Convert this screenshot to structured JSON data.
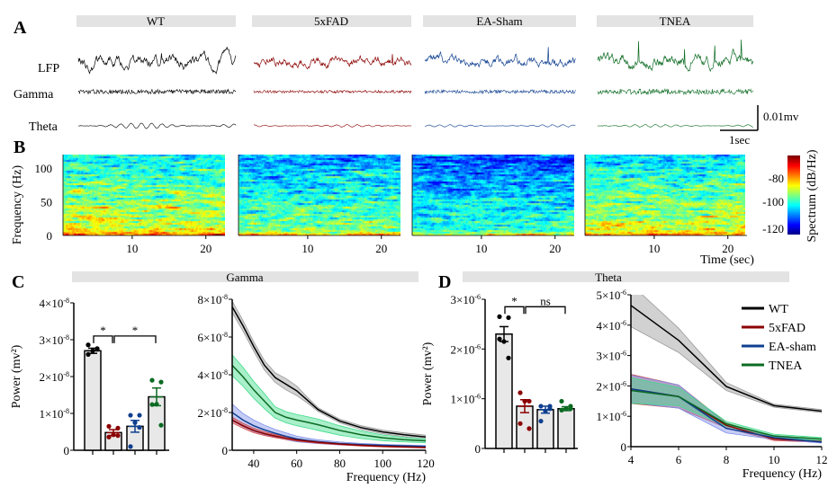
{
  "panel_labels": {
    "a": "A",
    "b": "B",
    "c": "C",
    "d": "D"
  },
  "colors": {
    "WT": "#000000",
    "5xFAD": "#8b0000",
    "EA-sham": "#0f3f8f",
    "TNEA": "#0b6b22",
    "header_bar": "#e3e3e3",
    "bar_fill": "#e8e8e8"
  },
  "panel_a": {
    "conditions": [
      "WT",
      "5xFAD",
      "EA-Sham",
      "TNEA"
    ],
    "rows": [
      "LFP",
      "Gamma",
      "Theta"
    ],
    "scale_voltage": "0.01mv",
    "scale_time": "1sec"
  },
  "panel_b": {
    "ylabel": "Frequency (Hz)",
    "yticks": [
      "0",
      "50",
      "100"
    ],
    "xticks": [
      "10",
      "20"
    ],
    "xlabel": "Time (sec)",
    "colorbar": {
      "label": "Spectrum (dB/Hz)",
      "ticks": [
        "-80",
        "-100",
        "-120"
      ],
      "colormap": "jet",
      "range": [
        -125,
        -70
      ]
    },
    "ylim": [
      0,
      120
    ],
    "xlim": [
      0,
      22
    ]
  },
  "panel_c": {
    "header": "Gamma"
  },
  "panel_d": {
    "header": "Theta"
  },
  "legend": {
    "placement": "top-right",
    "items": [
      "WT",
      "5xFAD",
      "EA-sham",
      "TNEA"
    ]
  },
  "chart_data": [
    {
      "id": "gamma-bar",
      "type": "bar",
      "ylabel": "Power (mv²)",
      "ylim": [
        0,
        4e-08
      ],
      "yticks": [
        {
          "m": "0",
          "e": ""
        },
        {
          "m": "1×10",
          "e": "-8"
        },
        {
          "m": "2×10",
          "e": "-8"
        },
        {
          "m": "3×10",
          "e": "-8"
        },
        {
          "m": "4×10",
          "e": "-8"
        }
      ],
      "ytick_values": [
        0,
        1e-08,
        2e-08,
        3e-08,
        4e-08
      ],
      "categories": [
        "WT",
        "5xFAD",
        "EA-sham",
        "TNEA"
      ],
      "values": [
        2.7e-08,
        4.8e-09,
        6.5e-09,
        1.45e-08
      ],
      "sem": [
        7e-10,
        8e-10,
        1.6e-09,
        2.4e-09
      ],
      "points": [
        [
          2.86e-08,
          2.76e-08,
          2.7e-08,
          2.6e-08,
          2.74e-08
        ],
        [
          6.5e-09,
          6e-09,
          4.2e-09,
          3.6e-09,
          4e-09
        ],
        [
          9.5e-09,
          9.5e-09,
          7.5e-09,
          1e-09,
          6.2e-09
        ],
        [
          1.9e-08,
          1.85e-08,
          1.25e-08,
          1.24e-08,
          6.8e-09
        ]
      ],
      "significance": [
        {
          "from": 0,
          "to": 1,
          "y": 3.1e-08,
          "label": "*"
        },
        {
          "from": 1,
          "to": 3,
          "y": 3.1e-08,
          "label": "*"
        }
      ]
    },
    {
      "id": "gamma-line",
      "type": "line",
      "xlabel": "Frequency (Hz)",
      "xlim": [
        30,
        120
      ],
      "ylim": [
        0,
        8e-08
      ],
      "xticks": [
        "40",
        "60",
        "80",
        "100",
        "120"
      ],
      "xtick_values": [
        40,
        60,
        80,
        100,
        120
      ],
      "yticks": [
        {
          "m": "0",
          "e": ""
        },
        {
          "m": "2×10",
          "e": "-8"
        },
        {
          "m": "4×10",
          "e": "-8"
        },
        {
          "m": "6×10",
          "e": "-8"
        },
        {
          "m": "8×10",
          "e": "-8"
        }
      ],
      "ytick_values": [
        0,
        2e-08,
        4e-08,
        6e-08,
        8e-08
      ],
      "x": [
        30,
        35,
        40,
        45,
        50,
        55,
        60,
        65,
        70,
        80,
        90,
        100,
        110,
        120
      ],
      "series": [
        {
          "name": "WT",
          "y": [
            7.6,
            6.6,
            5.5,
            4.5,
            3.85,
            3.5,
            3.15,
            2.65,
            2.15,
            1.55,
            1.2,
            0.97,
            0.82,
            0.7
          ],
          "band": [
            0.3,
            0.28,
            0.25,
            0.25,
            0.25,
            0.3,
            0.25,
            0.15,
            0.1,
            0.1,
            0.1,
            0.1,
            0.1,
            0.1
          ],
          "scale": 1e-08
        },
        {
          "name": "TNEA",
          "y": [
            4.5,
            3.9,
            3.2,
            2.6,
            2.0,
            1.75,
            1.6,
            1.48,
            1.35,
            1.05,
            0.82,
            0.66,
            0.56,
            0.5
          ],
          "band": [
            0.55,
            0.5,
            0.45,
            0.4,
            0.3,
            0.3,
            0.3,
            0.3,
            0.3,
            0.25,
            0.2,
            0.15,
            0.12,
            0.1
          ],
          "scale": 1e-08
        },
        {
          "name": "EA-sham",
          "y": [
            2.0,
            1.6,
            1.3,
            1.08,
            0.9,
            0.74,
            0.6,
            0.52,
            0.45,
            0.36,
            0.3,
            0.26,
            0.23,
            0.2
          ],
          "band": [
            0.45,
            0.35,
            0.3,
            0.25,
            0.2,
            0.18,
            0.15,
            0.12,
            0.1,
            0.08,
            0.06,
            0.05,
            0.05,
            0.05
          ],
          "scale": 1e-08
        },
        {
          "name": "5xFAD",
          "y": [
            1.6,
            1.3,
            1.05,
            0.88,
            0.75,
            0.64,
            0.55,
            0.48,
            0.42,
            0.33,
            0.26,
            0.21,
            0.18,
            0.15
          ],
          "band": [
            0.15,
            0.13,
            0.12,
            0.1,
            0.08,
            0.07,
            0.06,
            0.05,
            0.05,
            0.04,
            0.04,
            0.03,
            0.03,
            0.03
          ],
          "scale": 1e-08
        }
      ]
    },
    {
      "id": "theta-bar",
      "type": "bar",
      "ylabel": "Power (mv²)",
      "ylim": [
        0,
        3e-06
      ],
      "yticks": [
        {
          "m": "0",
          "e": ""
        },
        {
          "m": "1×10",
          "e": "-6"
        },
        {
          "m": "2×10",
          "e": "-6"
        },
        {
          "m": "3×10",
          "e": "-6"
        }
      ],
      "ytick_values": [
        0,
        1e-06,
        2e-06,
        3e-06
      ],
      "categories": [
        "WT",
        "5xFAD",
        "EA-sham",
        "TNEA"
      ],
      "values": [
        2.3e-06,
        8.5e-07,
        7.8e-07,
        8e-07
      ],
      "sem": [
        1.5e-07,
        1.3e-07,
        7e-08,
        4e-08
      ],
      "points": [
        [
          2.65e-06,
          2.63e-06,
          2.15e-06,
          2.2e-06,
          1.82e-06
        ],
        [
          1.12e-06,
          9.5e-07,
          9.5e-07,
          5e-07,
          4e-07
        ],
        [
          8.5e-07,
          8.5e-07,
          7.5e-07,
          5.5e-07,
          8e-07
        ],
        [
          9.5e-07,
          8.5e-07,
          8e-07,
          7.7e-07,
          8e-07
        ]
      ],
      "significance": [
        {
          "from": 0,
          "to": 1,
          "y": 2.85e-06,
          "label": "*"
        },
        {
          "from": 1,
          "to": 3,
          "y": 2.85e-06,
          "label": "ns"
        }
      ]
    },
    {
      "id": "theta-line",
      "type": "line",
      "xlabel": "Frequency (Hz)",
      "xlim": [
        4,
        12
      ],
      "ylim": [
        0,
        5e-06
      ],
      "xticks": [
        "4",
        "6",
        "8",
        "10",
        "12"
      ],
      "xtick_values": [
        4,
        6,
        8,
        10,
        12
      ],
      "yticks": [
        {
          "m": "0",
          "e": ""
        },
        {
          "m": "1×10",
          "e": "-6"
        },
        {
          "m": "2×10",
          "e": "-6"
        },
        {
          "m": "3×10",
          "e": "-6"
        },
        {
          "m": "4×10",
          "e": "-6"
        },
        {
          "m": "5×10",
          "e": "-6"
        }
      ],
      "ytick_values": [
        0,
        1e-06,
        2e-06,
        3e-06,
        4e-06,
        5e-06
      ],
      "x": [
        4,
        6,
        8,
        10,
        12
      ],
      "series": [
        {
          "name": "WT",
          "y": [
            4.65,
            3.5,
            1.98,
            1.35,
            1.17
          ],
          "band": [
            0.7,
            0.4,
            0.13,
            0.05,
            0.05
          ],
          "scale": 1e-06
        },
        {
          "name": "5xFAD",
          "y": [
            1.9,
            1.65,
            0.7,
            0.25,
            0.17
          ],
          "band": [
            0.48,
            0.38,
            0.08,
            0.05,
            0.03
          ],
          "scale": 1e-06
        },
        {
          "name": "EA-sham",
          "y": [
            1.9,
            1.65,
            0.6,
            0.3,
            0.15
          ],
          "band": [
            0.45,
            0.38,
            0.15,
            0.06,
            0.03
          ],
          "scale": 1e-06
        },
        {
          "name": "TNEA",
          "y": [
            1.85,
            1.65,
            0.75,
            0.35,
            0.25
          ],
          "band": [
            0.42,
            0.3,
            0.08,
            0.06,
            0.05
          ],
          "scale": 1e-06
        }
      ]
    }
  ]
}
